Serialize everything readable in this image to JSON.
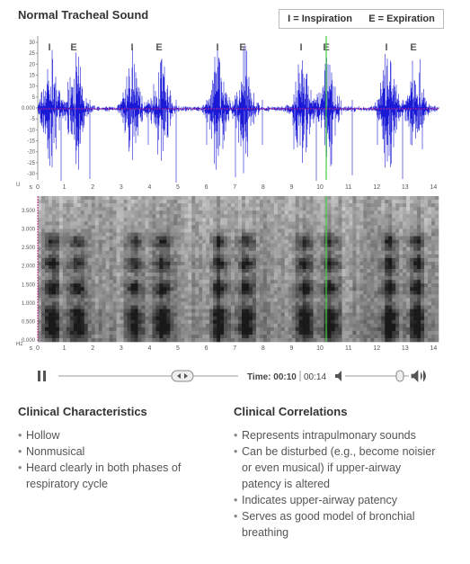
{
  "header": {
    "title": "Normal Tracheal Sound",
    "legend": [
      "I = Inspiration",
      "E = Expiration"
    ]
  },
  "markers": [
    "I",
    "E",
    "I",
    "E",
    "I",
    "E",
    "I",
    "E",
    "I",
    "E"
  ],
  "waveform": {
    "unit": "U",
    "yticks": [
      "30",
      "25",
      "20",
      "15",
      "10",
      "5",
      "0.000",
      "-5",
      "-10",
      "-15",
      "-20",
      "-25",
      "-30"
    ]
  },
  "time_axis": {
    "unit": "s",
    "ticks": [
      "0",
      "1",
      "2",
      "3",
      "4",
      "5",
      "6",
      "7",
      "8",
      "9",
      "10",
      "11",
      "12",
      "13",
      "14"
    ]
  },
  "spectrogram": {
    "unit": "Hz",
    "yticks": [
      "3.500",
      "3.000",
      "2.500",
      "2.000",
      "1.500",
      "1.000",
      "0.500",
      "0.000"
    ]
  },
  "player": {
    "time_label": "Time: 00:10",
    "duration": "00:14"
  },
  "characteristics": {
    "heading": "Clinical Characteristics",
    "items": [
      "Hollow",
      "Nonmusical",
      "Heard clearly in both phases of respiratory cycle"
    ]
  },
  "correlations": {
    "heading": "Clinical Correlations",
    "items": [
      "Represents intrapulmonary sounds",
      "Can be disturbed (e.g., become noisier or even musical) if upper-airway patency is altered",
      "Indicates upper-airway patency",
      "Serves as good model of bronchial breathing"
    ]
  }
}
